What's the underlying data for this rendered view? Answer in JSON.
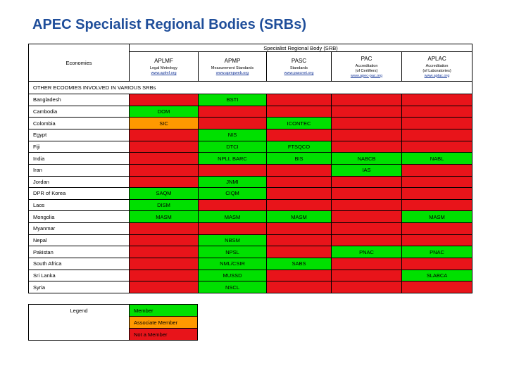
{
  "title": "APEC Specialist Regional Bodies (SRBs)",
  "table": {
    "group_header": "Specialist Regional Body (SRB)",
    "economies_header": "Economies",
    "srbs": [
      {
        "name": "APLMF",
        "lines": [
          "Legal Metrology"
        ],
        "url": "www.aplmf.org"
      },
      {
        "name": "APMP",
        "lines": [
          "Measurement Standards"
        ],
        "url": "www.apmpweb.org"
      },
      {
        "name": "PASC",
        "lines": [
          "Standards"
        ],
        "url": "www.pascnet.org"
      },
      {
        "name": "PAC",
        "lines": [
          "Accreditation",
          "(of Certifiers)"
        ],
        "url": "www.apec-pac.org"
      },
      {
        "name": "APLAC",
        "lines": [
          "Accreditation",
          "(of Laboratories)"
        ],
        "url": "www.aplac.org"
      }
    ],
    "section": "OTHER ECOOMIES INVOLVED IN VARIOUS SRBs",
    "rows": [
      {
        "economy": "Bangladesh",
        "cells": [
          {
            "color": "#e8141a"
          },
          {
            "text": "BSTI",
            "color": "#00e000"
          },
          {
            "color": "#e8141a"
          },
          {
            "color": "#e8141a"
          },
          {
            "color": "#e8141a"
          }
        ]
      },
      {
        "economy": "Cambodia",
        "cells": [
          {
            "text": "DOM",
            "color": "#00e000"
          },
          {
            "color": "#e8141a"
          },
          {
            "color": "#e8141a"
          },
          {
            "color": "#e8141a"
          },
          {
            "color": "#e8141a"
          }
        ]
      },
      {
        "economy": "Colombia",
        "cells": [
          {
            "text": "SIC",
            "color": "#ff9900"
          },
          {
            "color": "#e8141a"
          },
          {
            "text": "ICONTEC",
            "color": "#00e000"
          },
          {
            "color": "#e8141a"
          },
          {
            "color": "#e8141a"
          }
        ]
      },
      {
        "economy": "Egypt",
        "cells": [
          {
            "color": "#e8141a"
          },
          {
            "text": "NIS",
            "color": "#00e000"
          },
          {
            "color": "#e8141a"
          },
          {
            "color": "#e8141a"
          },
          {
            "color": "#e8141a"
          }
        ]
      },
      {
        "economy": "Fiji",
        "cells": [
          {
            "color": "#e8141a"
          },
          {
            "text": "DTCI",
            "color": "#00e000"
          },
          {
            "text": "FTSQCO",
            "color": "#00e000"
          },
          {
            "color": "#e8141a"
          },
          {
            "color": "#e8141a"
          }
        ]
      },
      {
        "economy": "India",
        "cells": [
          {
            "color": "#e8141a"
          },
          {
            "text": "NPLI, BARC",
            "color": "#00e000"
          },
          {
            "text": "BIS",
            "color": "#00e000"
          },
          {
            "text": "NABCB",
            "color": "#00e000"
          },
          {
            "text": "NABL",
            "color": "#00e000"
          }
        ]
      },
      {
        "economy": "Iran",
        "cells": [
          {
            "color": "#e8141a"
          },
          {
            "color": "#e8141a"
          },
          {
            "color": "#e8141a"
          },
          {
            "text": "IAS",
            "color": "#00e000"
          },
          {
            "color": "#e8141a"
          }
        ]
      },
      {
        "economy": "Jordan",
        "cells": [
          {
            "color": "#e8141a"
          },
          {
            "text": "JNMI",
            "color": "#00e000"
          },
          {
            "color": "#e8141a"
          },
          {
            "color": "#e8141a"
          },
          {
            "color": "#e8141a"
          }
        ]
      },
      {
        "economy": "DPR of Korea",
        "cells": [
          {
            "text": "SAQM",
            "color": "#00e000"
          },
          {
            "text": "CIQM",
            "color": "#00e000"
          },
          {
            "color": "#e8141a"
          },
          {
            "color": "#e8141a"
          },
          {
            "color": "#e8141a"
          }
        ]
      },
      {
        "economy": "Laos",
        "cells": [
          {
            "text": "DISM",
            "color": "#00e000"
          },
          {
            "color": "#e8141a"
          },
          {
            "color": "#e8141a"
          },
          {
            "color": "#e8141a"
          },
          {
            "color": "#e8141a"
          }
        ]
      },
      {
        "economy": "Mongolia",
        "cells": [
          {
            "text": "MASM",
            "color": "#00e000"
          },
          {
            "text": "MASM",
            "color": "#00e000"
          },
          {
            "text": "MASM",
            "color": "#00e000"
          },
          {
            "color": "#e8141a"
          },
          {
            "text": "MASM",
            "color": "#00e000"
          }
        ]
      },
      {
        "economy": "Myanmar",
        "cells": [
          {
            "color": "#e8141a"
          },
          {
            "color": "#e8141a"
          },
          {
            "color": "#e8141a"
          },
          {
            "color": "#e8141a"
          },
          {
            "color": "#e8141a"
          }
        ]
      },
      {
        "economy": "Nepal",
        "cells": [
          {
            "color": "#e8141a"
          },
          {
            "text": "NBSM",
            "color": "#00e000"
          },
          {
            "color": "#e8141a"
          },
          {
            "color": "#e8141a"
          },
          {
            "color": "#e8141a"
          }
        ]
      },
      {
        "economy": "Pakistan",
        "cells": [
          {
            "color": "#e8141a"
          },
          {
            "text": "NPSL",
            "color": "#00e000"
          },
          {
            "color": "#e8141a"
          },
          {
            "text": "PNAC",
            "color": "#00e000"
          },
          {
            "text": "PNAC",
            "color": "#00e000"
          }
        ]
      },
      {
        "economy": "South Africa",
        "cells": [
          {
            "color": "#e8141a"
          },
          {
            "text": "NML/CSIR",
            "color": "#00e000"
          },
          {
            "text": "SABS",
            "color": "#00e000"
          },
          {
            "color": "#e8141a"
          },
          {
            "color": "#e8141a"
          }
        ]
      },
      {
        "economy": "Sri Lanka",
        "cells": [
          {
            "color": "#e8141a"
          },
          {
            "text": "MUSSD",
            "color": "#00e000"
          },
          {
            "color": "#e8141a"
          },
          {
            "color": "#e8141a"
          },
          {
            "text": "SLABCA",
            "color": "#00e000"
          }
        ]
      },
      {
        "economy": "Syria",
        "cells": [
          {
            "color": "#e8141a"
          },
          {
            "text": "NSCL",
            "color": "#00e000"
          },
          {
            "color": "#e8141a"
          },
          {
            "color": "#e8141a"
          },
          {
            "color": "#e8141a"
          }
        ]
      }
    ]
  },
  "legend": {
    "title": "Legend",
    "items": [
      {
        "label": "Member",
        "color": "#00e000"
      },
      {
        "label": "Associate Member",
        "color": "#ff9900"
      },
      {
        "label": "Not a Member",
        "color": "#e8141a"
      }
    ]
  }
}
